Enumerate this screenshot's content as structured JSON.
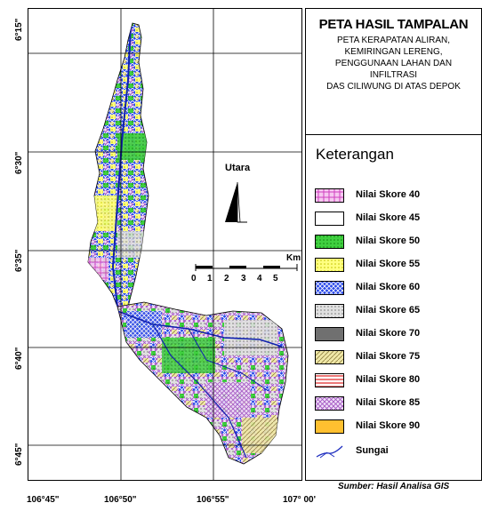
{
  "title": "PETA HASIL TAMPALAN",
  "subtitle_lines": [
    "PETA KERAPATAN ALIRAN,",
    "KEMIRINGAN LERENG,",
    "PENGGUNAAN LAHAN DAN",
    "INFILTRASI",
    "DAS CILIWUNG DI ATAS DEPOK"
  ],
  "legend": {
    "title": "Keterangan",
    "items": [
      {
        "label": "Nilai Skore 40",
        "pattern": "pink-hatch",
        "color": "#e060d0"
      },
      {
        "label": "Nilai Skore 45",
        "pattern": "white",
        "color": "#ffffff"
      },
      {
        "label": "Nilai Skore 50",
        "pattern": "green-dots",
        "color": "#30d030"
      },
      {
        "label": "Nilai Skore 55",
        "pattern": "yellow-dots",
        "color": "#ffff60"
      },
      {
        "label": "Nilai Skore 60",
        "pattern": "blue-cross",
        "color": "#2040e0"
      },
      {
        "label": "Nilai Skore 65",
        "pattern": "gray-dots",
        "color": "#c8c8c8"
      },
      {
        "label": "Nilai Skore 70",
        "pattern": "dark-gray",
        "color": "#707070"
      },
      {
        "label": "Nilai Skore 75",
        "pattern": "khaki-hatch",
        "color": "#e8e090"
      },
      {
        "label": "Nilai Skore 80",
        "pattern": "red-lines",
        "color": "#e03030"
      },
      {
        "label": "Nilai Skore 85",
        "pattern": "violet-cross",
        "color": "#b070d0"
      },
      {
        "label": "Nilai Skore 90",
        "pattern": "orange",
        "color": "#ffc030"
      }
    ],
    "river_label": "Sungai",
    "river_color": "#2030c0"
  },
  "source": "Sumber: Hasil Analisa GIS",
  "north_label": "Utara",
  "scale": {
    "unit": "Km",
    "ticks": [
      "0",
      "1",
      "2",
      "3",
      "4",
      "5"
    ]
  },
  "longitudes": [
    "106°45\"",
    "106°50\"",
    "106°55\"",
    "107° 00'"
  ],
  "latitudes": [
    "6°15\"",
    "6°30\"",
    "6°35\"",
    "6°40\"",
    "6°45\""
  ]
}
